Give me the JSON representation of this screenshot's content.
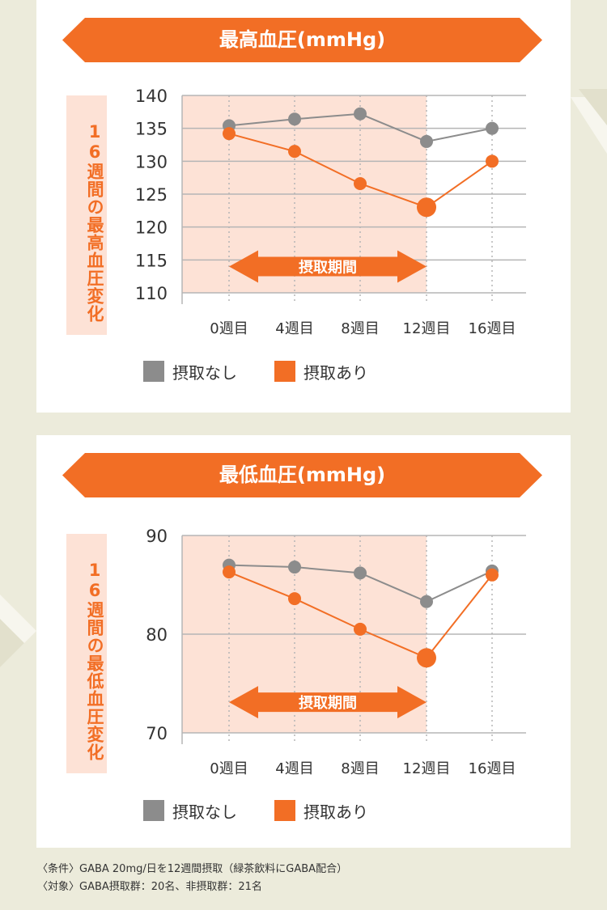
{
  "colors": {
    "accent": "#f26e25",
    "gray": "#8c8c8c",
    "band": "#fde2d6",
    "grid": "#b5b5b5"
  },
  "legend": {
    "no_intake": "摂取なし",
    "intake": "摂取あり"
  },
  "footnotes": {
    "condition": "〈条件〉GABA 20mg/日を12週間摂取（緑茶飲料にGABA配合）",
    "subjects": "〈対象〉GABA摂取群：20名、非摂取群：21名"
  },
  "chart_data": [
    {
      "type": "line",
      "title": "最高血圧(mmHg)",
      "ylabel": "16週間の最高血圧変化",
      "categories": [
        "0週目",
        "4週目",
        "8週目",
        "12週目",
        "16週目"
      ],
      "ylim": [
        110,
        140
      ],
      "yticks": [
        110,
        115,
        120,
        125,
        130,
        135,
        140
      ],
      "grid": true,
      "intake_period_label": "摂取期間",
      "intake_period": [
        "0週目",
        "12週目"
      ],
      "highlight_index": 3,
      "series": [
        {
          "name": "摂取なし",
          "color": "#8c8c8c",
          "values": [
            135.4,
            136.4,
            137.2,
            133.0,
            135.0
          ]
        },
        {
          "name": "摂取あり",
          "color": "#f26e25",
          "values": [
            134.2,
            131.5,
            126.6,
            123.0,
            130.0
          ]
        }
      ]
    },
    {
      "type": "line",
      "title": "最低血圧(mmHg)",
      "ylabel": "16週間の最低血圧変化",
      "categories": [
        "0週目",
        "4週目",
        "8週目",
        "12週目",
        "16週目"
      ],
      "ylim": [
        70,
        90
      ],
      "yticks": [
        70,
        80,
        90
      ],
      "grid": true,
      "intake_period_label": "摂取期間",
      "intake_period": [
        "0週目",
        "12週目"
      ],
      "highlight_index": 3,
      "series": [
        {
          "name": "摂取なし",
          "color": "#8c8c8c",
          "values": [
            87.0,
            86.8,
            86.2,
            83.3,
            86.4
          ]
        },
        {
          "name": "摂取あり",
          "color": "#f26e25",
          "values": [
            86.3,
            83.6,
            80.5,
            77.6,
            86.0
          ]
        }
      ]
    }
  ]
}
